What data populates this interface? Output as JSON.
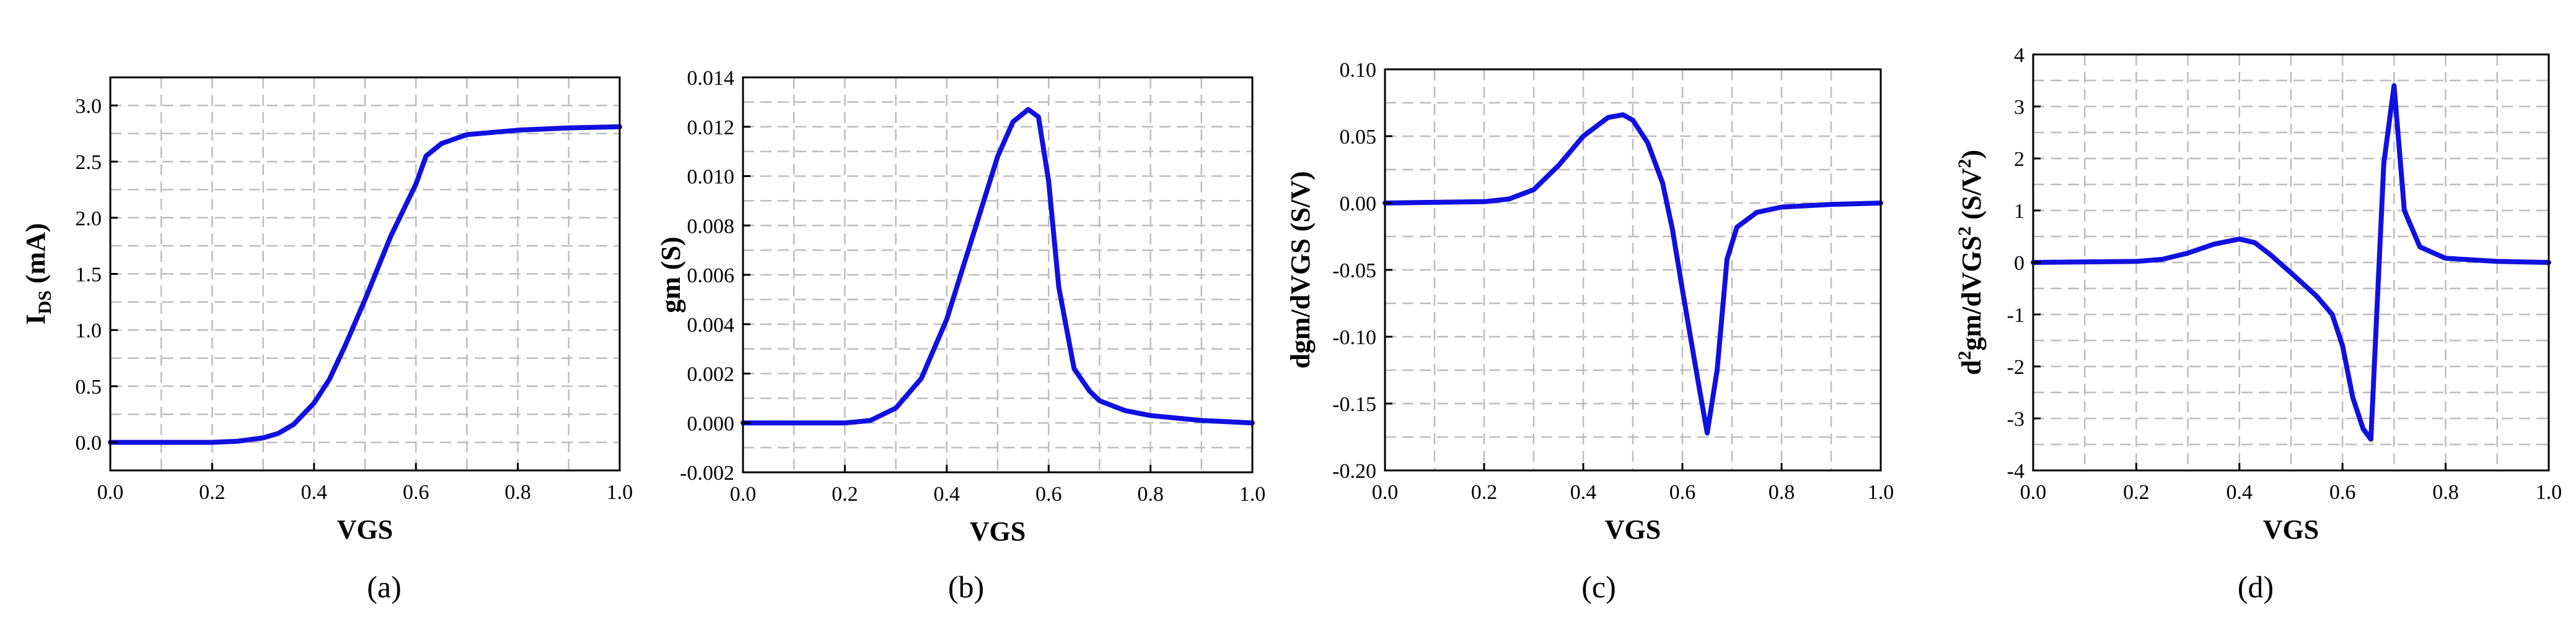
{
  "figure": {
    "colors": {
      "line": "#1010e0",
      "grid": "#bdbdbd",
      "axis": "#000000"
    }
  },
  "chart_data": [
    {
      "type": "line",
      "caption": "(a)",
      "xlabel": "VGS",
      "ylabel_main": "I",
      "ylabel_sub": "DS",
      "ylabel_rest": " (mA)",
      "xlim": [
        0.0,
        1.0
      ],
      "ylim": [
        -0.25,
        3.25
      ],
      "xticks": [
        0.0,
        0.2,
        0.4,
        0.6,
        0.8,
        1.0
      ],
      "xtick_labels": [
        "0.0",
        "0.2",
        "0.4",
        "0.6",
        "0.8",
        "1.0"
      ],
      "yticks": [
        0.0,
        0.5,
        1.0,
        1.5,
        2.0,
        2.5,
        3.0
      ],
      "ytick_labels": [
        "0.0",
        "0.5",
        "1.0",
        "1.5",
        "2.0",
        "2.5",
        "3.0"
      ],
      "series": [
        {
          "name": "IDS",
          "x": [
            0.0,
            0.2,
            0.25,
            0.3,
            0.33,
            0.36,
            0.4,
            0.43,
            0.46,
            0.5,
            0.55,
            0.6,
            0.62,
            0.65,
            0.7,
            0.8,
            0.9,
            1.0
          ],
          "y": [
            0.0,
            0.0,
            0.01,
            0.04,
            0.08,
            0.16,
            0.35,
            0.56,
            0.85,
            1.27,
            1.83,
            2.3,
            2.55,
            2.66,
            2.74,
            2.78,
            2.8,
            2.81
          ]
        }
      ]
    },
    {
      "type": "line",
      "caption": "(b)",
      "xlabel": "VGS",
      "ylabel_main": "gm (S)",
      "ylabel_sub": "",
      "ylabel_rest": "",
      "xlim": [
        0.0,
        1.0
      ],
      "ylim": [
        -0.002,
        0.014
      ],
      "xticks": [
        0.0,
        0.2,
        0.4,
        0.6,
        0.8,
        1.0
      ],
      "xtick_labels": [
        "0.0",
        "0.2",
        "0.4",
        "0.6",
        "0.8",
        "1.0"
      ],
      "yticks": [
        -0.002,
        0.0,
        0.002,
        0.004,
        0.006,
        0.008,
        0.01,
        0.012,
        0.014
      ],
      "ytick_labels": [
        "-0.002",
        "0.000",
        "0.002",
        "0.004",
        "0.006",
        "0.008",
        "0.010",
        "0.012",
        "0.014"
      ],
      "series": [
        {
          "name": "gm",
          "x": [
            0.0,
            0.2,
            0.25,
            0.3,
            0.35,
            0.4,
            0.45,
            0.5,
            0.53,
            0.56,
            0.58,
            0.6,
            0.62,
            0.65,
            0.68,
            0.7,
            0.75,
            0.8,
            0.9,
            1.0
          ],
          "y": [
            0.0,
            0.0,
            0.0001,
            0.0006,
            0.0018,
            0.0042,
            0.0075,
            0.0108,
            0.0122,
            0.0127,
            0.0124,
            0.0098,
            0.0055,
            0.0022,
            0.0013,
            0.0009,
            0.0005,
            0.0003,
            0.0001,
            0.0
          ]
        }
      ]
    },
    {
      "type": "line",
      "caption": "(c)",
      "xlabel": "VGS",
      "ylabel_main": "dgm/dVGS (S/V)",
      "ylabel_sub": "",
      "ylabel_rest": "",
      "xlim": [
        0.0,
        1.0
      ],
      "ylim": [
        -0.2,
        0.1
      ],
      "xticks": [
        0.0,
        0.2,
        0.4,
        0.6,
        0.8,
        1.0
      ],
      "xtick_labels": [
        "0.0",
        "0.2",
        "0.4",
        "0.6",
        "0.8",
        "1.0"
      ],
      "yticks": [
        -0.2,
        -0.15,
        -0.1,
        -0.05,
        0.0,
        0.05,
        0.1
      ],
      "ytick_labels": [
        "-0.20",
        "-0.15",
        "-0.10",
        "-0.05",
        "0.00",
        "0.05",
        "0.10"
      ],
      "series": [
        {
          "name": "dgm/dVGS",
          "x": [
            0.0,
            0.2,
            0.25,
            0.3,
            0.35,
            0.4,
            0.45,
            0.48,
            0.5,
            0.53,
            0.56,
            0.58,
            0.6,
            0.63,
            0.65,
            0.67,
            0.69,
            0.71,
            0.75,
            0.8,
            0.9,
            1.0
          ],
          "y": [
            0.0,
            0.001,
            0.003,
            0.01,
            0.028,
            0.05,
            0.064,
            0.066,
            0.062,
            0.045,
            0.015,
            -0.02,
            -0.065,
            -0.13,
            -0.172,
            -0.125,
            -0.042,
            -0.018,
            -0.007,
            -0.003,
            -0.001,
            0.0
          ]
        }
      ]
    },
    {
      "type": "line",
      "caption": "(d)",
      "xlabel": "VGS",
      "ylabel_main": "d",
      "ylabel_sup1": "2",
      "ylabel_mid": "gm/dVGS",
      "ylabel_sup2": "2",
      "ylabel_mid2": " (S/V",
      "ylabel_sup3": "2",
      "ylabel_end": ")",
      "xlim": [
        0.0,
        1.0
      ],
      "ylim": [
        -4,
        4
      ],
      "xticks": [
        0.0,
        0.2,
        0.4,
        0.6,
        0.8,
        1.0
      ],
      "xtick_labels": [
        "0.0",
        "0.2",
        "0.4",
        "0.6",
        "0.8",
        "1.0"
      ],
      "yticks": [
        -4,
        -3,
        -2,
        -1,
        0,
        1,
        2,
        3,
        4
      ],
      "ytick_labels": [
        "-4",
        "-3",
        "-2",
        "-1",
        "0",
        "1",
        "2",
        "3",
        "4"
      ],
      "series": [
        {
          "name": "d2gm/dVGS2",
          "x": [
            0.0,
            0.2,
            0.25,
            0.3,
            0.35,
            0.4,
            0.43,
            0.46,
            0.5,
            0.55,
            0.58,
            0.6,
            0.62,
            0.64,
            0.655,
            0.68,
            0.7,
            0.72,
            0.75,
            0.8,
            0.9,
            1.0
          ],
          "y": [
            0.0,
            0.02,
            0.06,
            0.18,
            0.35,
            0.45,
            0.38,
            0.15,
            -0.2,
            -0.65,
            -1.0,
            -1.6,
            -2.6,
            -3.2,
            -3.4,
            1.9,
            3.4,
            1.0,
            0.3,
            0.08,
            0.02,
            0.0
          ]
        }
      ]
    }
  ]
}
